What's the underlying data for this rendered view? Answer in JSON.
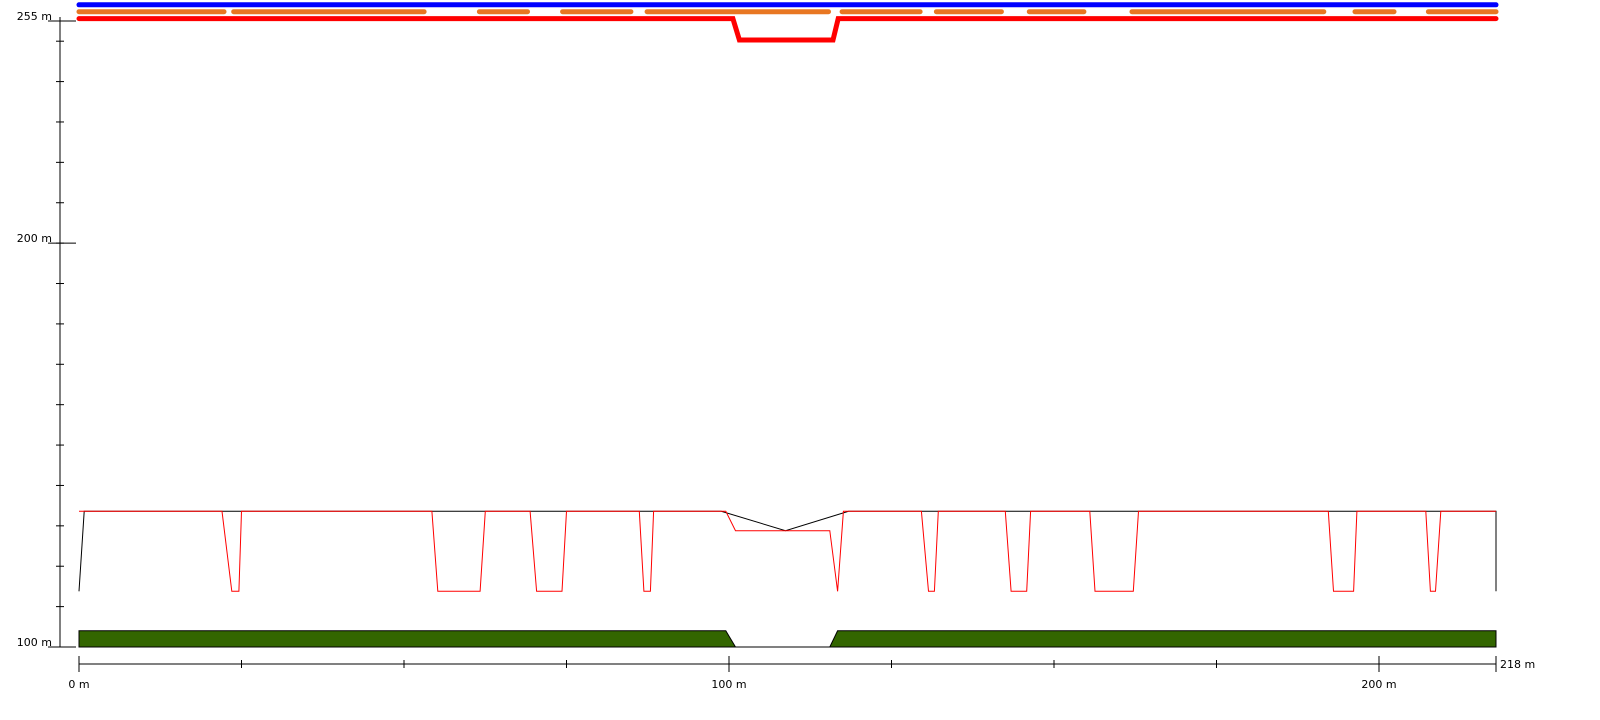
{
  "chart_data": {
    "type": "line",
    "x_unit": "m",
    "y_unit": "m",
    "xlim": [
      0,
      218
    ],
    "ylim": [
      100,
      255
    ],
    "x_ticks": [
      {
        "value": 0,
        "label": "0 m"
      },
      {
        "value": 100,
        "label": "100 m"
      },
      {
        "value": 200,
        "label": "200 m"
      },
      {
        "value": 218,
        "label": "218 m"
      }
    ],
    "y_ticks": [
      {
        "value": 100,
        "label": "100 m"
      },
      {
        "value": 200,
        "label": "200 m"
      },
      {
        "value": 255,
        "label": "255 m"
      }
    ],
    "x_minor_step": 25,
    "y_minor_step": 10,
    "series": [
      {
        "color": "#0000ff",
        "width": 5,
        "points": [
          [
            0,
            259
          ],
          [
            218,
            259
          ]
        ]
      },
      {
        "color": "#e87722",
        "width": 5,
        "segments": [
          [
            0,
            22.3
          ],
          [
            23.8,
            53.1
          ],
          [
            61.6,
            69.0
          ],
          [
            74.4,
            84.9
          ],
          [
            87.4,
            115.3
          ],
          [
            117.4,
            129.4
          ],
          [
            131.9,
            141.9
          ],
          [
            146.2,
            154.6
          ],
          [
            162.0,
            191.5
          ],
          [
            196.3,
            202.3
          ],
          [
            207.6,
            218
          ]
        ],
        "y": 257.3
      },
      {
        "color": "#ff0000",
        "width": 5,
        "points": [
          [
            0,
            255.6
          ],
          [
            100.6,
            255.6
          ],
          [
            101.6,
            250.3
          ],
          [
            116.0,
            250.3
          ],
          [
            116.8,
            255.6
          ],
          [
            218,
            255.6
          ]
        ]
      },
      {
        "color": "#000000",
        "width": 1,
        "points": [
          [
            0,
            113.8
          ],
          [
            0.8,
            133.6
          ],
          [
            98.8,
            133.6
          ],
          [
            108.7,
            128.8
          ],
          [
            118.4,
            133.6
          ],
          [
            218,
            133.6
          ],
          [
            218,
            113.8
          ]
        ]
      },
      {
        "color": "#ff0000",
        "width": 1,
        "points": [
          [
            0,
            133.6
          ],
          [
            22.0,
            133.6
          ],
          [
            23.5,
            113.8
          ],
          [
            24.6,
            113.8
          ],
          [
            25.0,
            133.6
          ],
          [
            54.3,
            133.6
          ],
          [
            55.2,
            113.8
          ],
          [
            61.7,
            113.8
          ],
          [
            62.5,
            133.6
          ],
          [
            69.4,
            133.6
          ],
          [
            70.4,
            113.8
          ],
          [
            74.3,
            113.8
          ],
          [
            75.0,
            133.6
          ],
          [
            86.2,
            133.6
          ],
          [
            86.9,
            113.8
          ],
          [
            87.9,
            113.8
          ],
          [
            88.4,
            133.6
          ],
          [
            99.5,
            133.6
          ],
          [
            101.0,
            128.8
          ],
          [
            115.5,
            128.8
          ],
          [
            116.7,
            113.8
          ],
          [
            117.6,
            133.6
          ],
          [
            129.6,
            133.6
          ],
          [
            130.7,
            113.8
          ],
          [
            131.6,
            113.8
          ],
          [
            132.2,
            133.6
          ],
          [
            142.5,
            133.6
          ],
          [
            143.4,
            113.8
          ],
          [
            145.8,
            113.8
          ],
          [
            146.4,
            133.6
          ],
          [
            155.5,
            133.6
          ],
          [
            156.3,
            113.8
          ],
          [
            162.2,
            113.8
          ],
          [
            163.0,
            133.6
          ],
          [
            192.2,
            133.6
          ],
          [
            193.0,
            113.8
          ],
          [
            196.1,
            113.8
          ],
          [
            196.6,
            133.6
          ],
          [
            207.2,
            133.6
          ],
          [
            207.9,
            113.8
          ],
          [
            208.7,
            113.8
          ],
          [
            209.5,
            133.6
          ],
          [
            218,
            133.6
          ]
        ]
      },
      {
        "color": "#336600",
        "stroke": "#000000",
        "type": "area",
        "points": [
          [
            0,
            104.0
          ],
          [
            99.5,
            104.0
          ],
          [
            101.0,
            100.0
          ],
          [
            115.5,
            100.0
          ],
          [
            116.7,
            104.0
          ],
          [
            218,
            104.0
          ],
          [
            218,
            100.0
          ],
          [
            0,
            100.0
          ]
        ]
      }
    ]
  }
}
